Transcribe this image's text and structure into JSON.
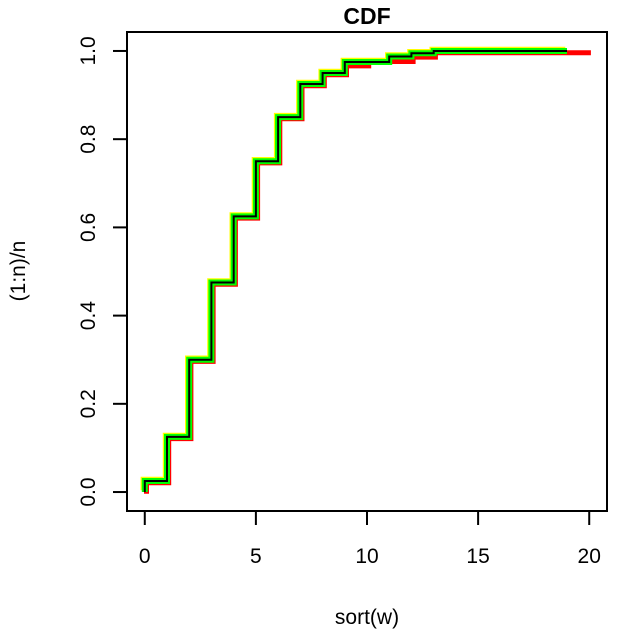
{
  "chart_data": {
    "type": "line",
    "subtype": "step-cdf",
    "title": "CDF",
    "xlabel": "sort(w)",
    "ylabel": "(1:n)/n",
    "xlim": [
      -0.8,
      20.8
    ],
    "ylim": [
      -0.043,
      1.043
    ],
    "x_ticks": [
      "0",
      "5",
      "10",
      "15",
      "20"
    ],
    "x_tick_values": [
      0,
      5,
      10,
      15,
      20
    ],
    "y_ticks": [
      "0.0",
      "0.2",
      "0.4",
      "0.6",
      "0.8",
      "1.0"
    ],
    "y_tick_values": [
      0.0,
      0.2,
      0.4,
      0.6,
      0.8,
      1.0
    ],
    "grid": false,
    "legend": "none",
    "background": "#ffffff",
    "axis_color": "#000000",
    "series": [
      {
        "name": "red-cdf",
        "color": "#FF0000",
        "stroke_width": 5,
        "dx": 1.7,
        "dy": 1.7,
        "points": [
          [
            0,
            0
          ],
          [
            0,
            0.025
          ],
          [
            1,
            0.125
          ],
          [
            2,
            0.3
          ],
          [
            3,
            0.475
          ],
          [
            4,
            0.625
          ],
          [
            5,
            0.75
          ],
          [
            6,
            0.85
          ],
          [
            7,
            0.925
          ],
          [
            8,
            0.95
          ],
          [
            9,
            0.97
          ],
          [
            10,
            0.98
          ],
          [
            12,
            0.99
          ],
          [
            13,
            1.0
          ],
          [
            20,
            1.0
          ]
        ]
      },
      {
        "name": "yellow-cdf",
        "color": "#FFFF00",
        "stroke_width": 5,
        "dx": -1.7,
        "dy": -1.7,
        "points": [
          [
            0,
            0
          ],
          [
            0,
            0.025
          ],
          [
            1,
            0.125
          ],
          [
            2,
            0.3
          ],
          [
            3,
            0.475
          ],
          [
            4,
            0.625
          ],
          [
            5,
            0.75
          ],
          [
            6,
            0.85
          ],
          [
            7,
            0.925
          ],
          [
            8,
            0.95
          ],
          [
            9,
            0.975
          ],
          [
            11,
            0.9875
          ],
          [
            12,
            0.995
          ],
          [
            13,
            1.0
          ],
          [
            19,
            1.0
          ]
        ]
      },
      {
        "name": "green-cdf",
        "color": "#00FF00",
        "stroke_width": 6,
        "dx": 0,
        "dy": 0,
        "points": [
          [
            0,
            0
          ],
          [
            0,
            0.025
          ],
          [
            1,
            0.125
          ],
          [
            2,
            0.3
          ],
          [
            3,
            0.475
          ],
          [
            4,
            0.625
          ],
          [
            5,
            0.75
          ],
          [
            6,
            0.85
          ],
          [
            7,
            0.925
          ],
          [
            8,
            0.95
          ],
          [
            9,
            0.975
          ],
          [
            11,
            0.9875
          ],
          [
            12,
            0.995
          ],
          [
            13,
            1.0
          ],
          [
            19,
            1.0
          ]
        ]
      },
      {
        "name": "core-cdf",
        "color": "#000000",
        "stroke_width": 2,
        "dx": 0,
        "dy": 0,
        "points": [
          [
            0,
            0
          ],
          [
            0,
            0.025
          ],
          [
            1,
            0.125
          ],
          [
            2,
            0.3
          ],
          [
            3,
            0.475
          ],
          [
            4,
            0.625
          ],
          [
            5,
            0.75
          ],
          [
            6,
            0.85
          ],
          [
            7,
            0.925
          ],
          [
            8,
            0.95
          ],
          [
            9,
            0.975
          ],
          [
            11,
            0.9875
          ],
          [
            12,
            0.995
          ],
          [
            13,
            1.0
          ],
          [
            19,
            1.0
          ]
        ]
      }
    ]
  }
}
